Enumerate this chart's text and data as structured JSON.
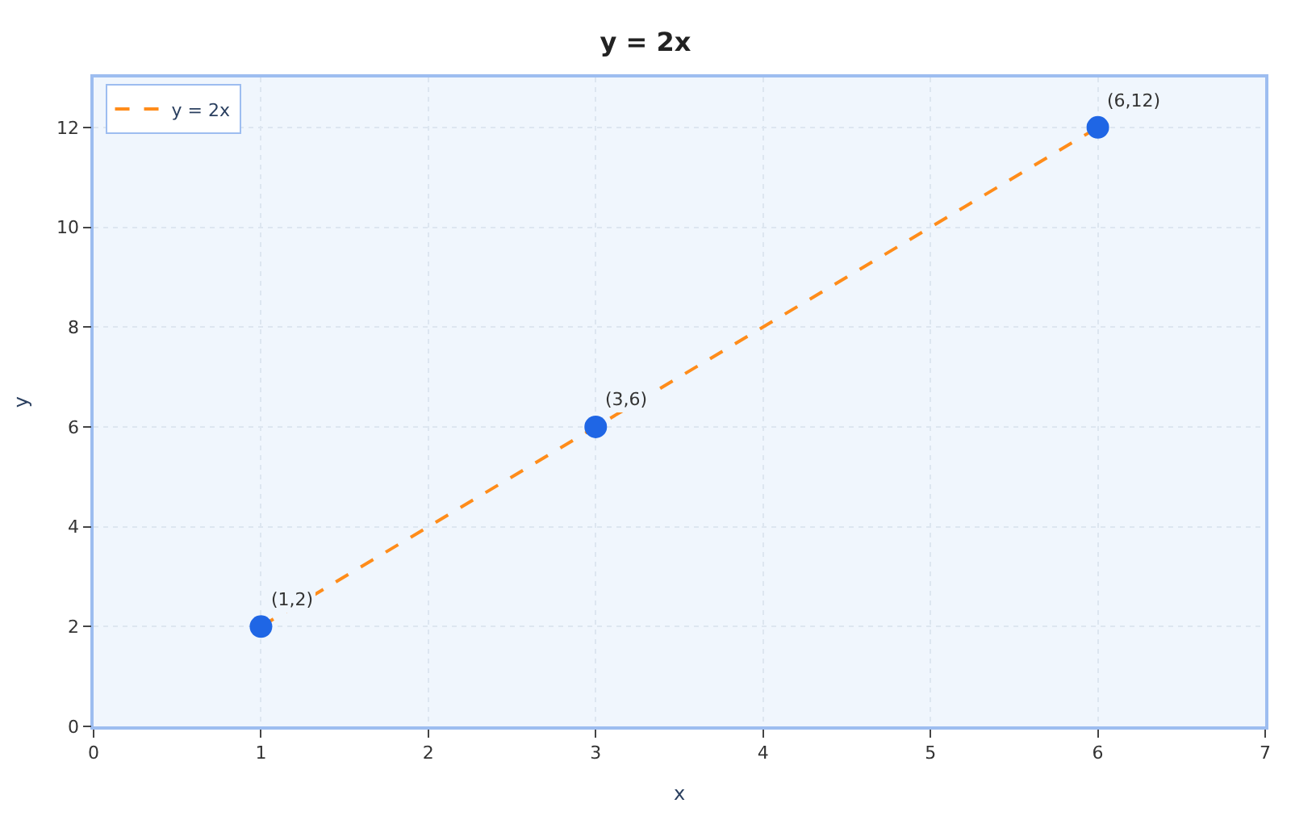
{
  "chart_data": {
    "type": "line",
    "title": "y = 2x",
    "xlabel": "x",
    "ylabel": "y",
    "x": [
      1,
      3,
      6
    ],
    "series": [
      {
        "name": "y = 2x",
        "color": "#ff8c1a",
        "values": [
          2,
          6,
          12
        ],
        "line_style": "dashed",
        "marker": "none"
      },
      {
        "type": "scatter",
        "color": "#1f66e5",
        "values": [
          2,
          6,
          12
        ],
        "marker": "circle"
      }
    ],
    "annotations": [
      {
        "text": "(1,2)",
        "x": 1,
        "y": 2
      },
      {
        "text": "(3,6)",
        "x": 3,
        "y": 6
      },
      {
        "text": "(6,12)",
        "x": 6,
        "y": 12
      }
    ],
    "xlim": [
      0,
      7
    ],
    "xticks": [
      0,
      1,
      2,
      3,
      4,
      5,
      6,
      7
    ],
    "ylim": [
      0,
      13
    ],
    "yticks": [
      0,
      2,
      4,
      6,
      8,
      10,
      12
    ],
    "grid": true,
    "legend": "top left"
  }
}
